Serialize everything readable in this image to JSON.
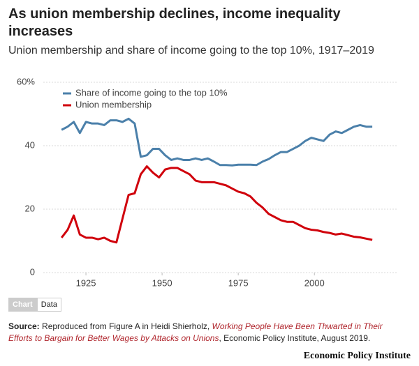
{
  "chart_data": {
    "type": "line",
    "title": "As union membership declines, income inequality increases",
    "subtitle": "Union membership and share of income going to the top 10%, 1917–2019",
    "x": [
      1917,
      1919,
      1921,
      1923,
      1925,
      1927,
      1929,
      1931,
      1933,
      1935,
      1937,
      1939,
      1941,
      1943,
      1945,
      1947,
      1949,
      1951,
      1953,
      1955,
      1957,
      1959,
      1961,
      1963,
      1965,
      1967,
      1969,
      1971,
      1973,
      1975,
      1977,
      1979,
      1981,
      1983,
      1985,
      1987,
      1989,
      1991,
      1993,
      1995,
      1997,
      1999,
      2001,
      2003,
      2005,
      2007,
      2009,
      2011,
      2013,
      2015,
      2017,
      2019
    ],
    "series": [
      {
        "name": "Share of income going to the top 10%",
        "color": "#4b80aa",
        "values": [
          45,
          46,
          47.5,
          44,
          47.5,
          47,
          47,
          46.5,
          48,
          48,
          47.5,
          48.5,
          47,
          36.5,
          37,
          39,
          39,
          37,
          35.5,
          36,
          35.5,
          35.5,
          36,
          35.5,
          36,
          35,
          33.9,
          33.9,
          33.8,
          34,
          34,
          34,
          33.9,
          35,
          35.8,
          37,
          38,
          38,
          39,
          40,
          41.5,
          42.5,
          42,
          41.5,
          43.5,
          44.5,
          44,
          45,
          46,
          46.5,
          46,
          46
        ]
      },
      {
        "name": "Union membership",
        "color": "#d0020c",
        "values": [
          11,
          13.5,
          18,
          12,
          11,
          11,
          10.5,
          11,
          10,
          9.5,
          17,
          24.5,
          25,
          31,
          33.5,
          31.5,
          30,
          32.5,
          33,
          33,
          32,
          31,
          29,
          28.5,
          28.5,
          28.5,
          28,
          27.5,
          26.5,
          25.5,
          25,
          24,
          22,
          20.5,
          18.5,
          17.5,
          16.5,
          16,
          16,
          15,
          14,
          13.5,
          13.3,
          12.8,
          12.5,
          12,
          12.3,
          11.8,
          11.3,
          11.1,
          10.7,
          10.3
        ]
      }
    ],
    "xlim": [
      1911,
      2027
    ],
    "xticks": [
      1925,
      1950,
      1975,
      2000
    ],
    "ylim": [
      0,
      60
    ],
    "yticks": [
      0,
      20,
      40,
      {
        "value": 60,
        "label": "60%"
      }
    ],
    "grid": true,
    "legend": "top-left"
  },
  "controls": [
    "Chart",
    "Data"
  ],
  "source": {
    "label": "Source:",
    "text1": "Reproduced from Figure A in Heidi Shierholz,",
    "link": "Working People Have Been Thwarted in Their Efforts to Bargain for Better Wages by Attacks on Unions",
    "text2": ", Economic Policy Institute, August 2019."
  },
  "publisher": "Economic Policy Institute"
}
